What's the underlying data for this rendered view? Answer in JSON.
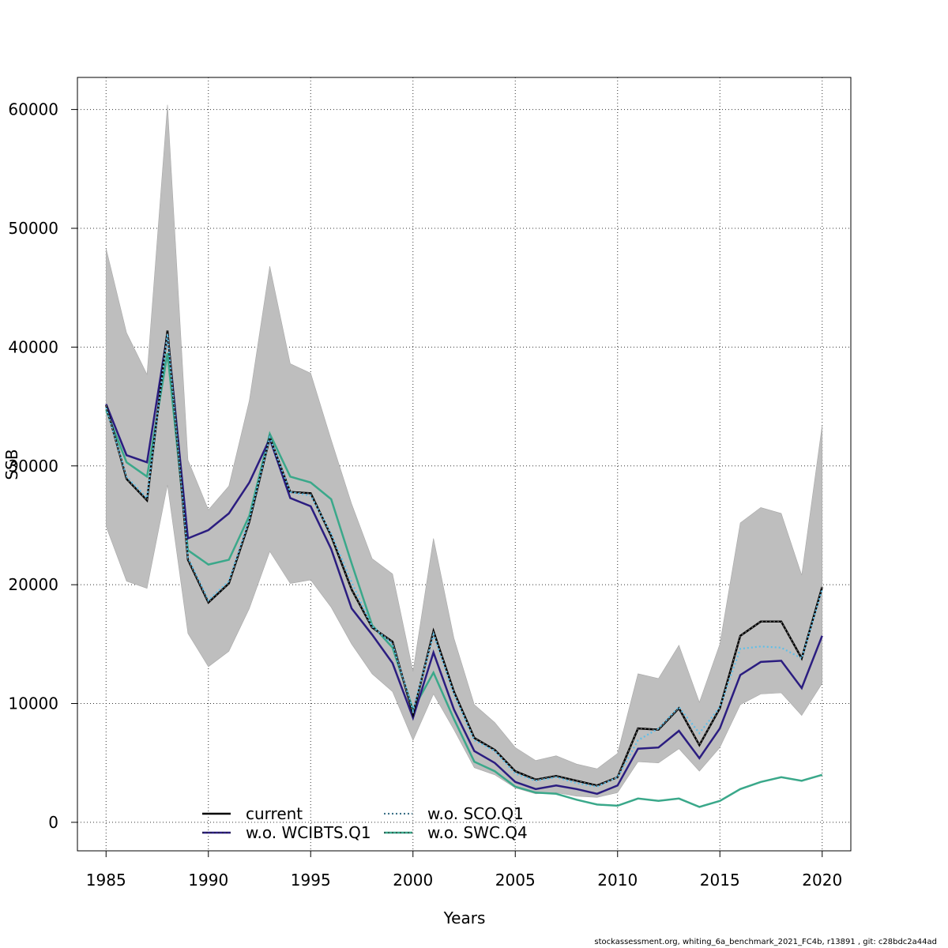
{
  "chart_data": {
    "type": "line",
    "title": "",
    "xlabel": "Years",
    "ylabel": "SSB",
    "xlim": [
      1983.6,
      2021.4
    ],
    "ylim": [
      -2400,
      62700
    ],
    "x_ticks": [
      1985,
      1990,
      1995,
      2000,
      2005,
      2010,
      2015,
      2020
    ],
    "y_ticks": [
      0,
      10000,
      20000,
      30000,
      40000,
      50000,
      60000
    ],
    "grid": true,
    "legend_position": "bottom-left",
    "x": [
      1985,
      1986,
      1987,
      1988,
      1989,
      1990,
      1991,
      1992,
      1993,
      1994,
      1995,
      1996,
      1997,
      1998,
      1999,
      2000,
      2001,
      2002,
      2003,
      2004,
      2005,
      2006,
      2007,
      2008,
      2009,
      2010,
      2011,
      2012,
      2013,
      2014,
      2015,
      2016,
      2017,
      2018,
      2019,
      2020
    ],
    "band": {
      "upper": [
        48300,
        41200,
        37700,
        60400,
        30500,
        26300,
        28300,
        35500,
        46800,
        38600,
        37800,
        32200,
        26800,
        22200,
        20900,
        12700,
        23900,
        15500,
        9900,
        8400,
        6300,
        5200,
        5600,
        4900,
        4500,
        5800,
        12500,
        12100,
        14900,
        10100,
        15000,
        25200,
        26500,
        26000,
        20800,
        33400
      ],
      "lower": [
        24900,
        20300,
        19700,
        28400,
        15900,
        13100,
        14400,
        18000,
        22800,
        20100,
        20400,
        18100,
        15000,
        12500,
        11000,
        6900,
        10800,
        7800,
        4600,
        4000,
        2900,
        2400,
        2500,
        2200,
        2100,
        2500,
        5100,
        5000,
        6200,
        4300,
        6300,
        9900,
        10800,
        10900,
        9000,
        11700
      ],
      "color": "#bebebe"
    },
    "series": [
      {
        "name": "current",
        "color": "#000000",
        "style": "solid",
        "values": [
          35100,
          28900,
          27100,
          41400,
          22100,
          18500,
          20100,
          25300,
          32400,
          27800,
          27700,
          24100,
          19600,
          16400,
          15200,
          9100,
          16100,
          11000,
          7100,
          6100,
          4300,
          3600,
          3900,
          3500,
          3100,
          3800,
          7900,
          7800,
          9600,
          6500,
          9600,
          15700,
          16900,
          16900,
          13800,
          19800
        ]
      },
      {
        "name": "w.o. WCIBTS.Q1",
        "color": "#2b1d80",
        "style": "solid",
        "values": [
          35200,
          30900,
          30300,
          41200,
          23900,
          24600,
          26000,
          28600,
          32300,
          27300,
          26600,
          23000,
          18000,
          15800,
          13400,
          8800,
          14300,
          9500,
          6000,
          5000,
          3400,
          2800,
          3100,
          2800,
          2400,
          3100,
          6200,
          6300,
          7700,
          5400,
          7900,
          12400,
          13500,
          13600,
          11300,
          15700
        ]
      },
      {
        "name": "w.o. SCO.Q1",
        "color": "#5fbfe8",
        "style": "dotted",
        "values": [
          34900,
          29100,
          27300,
          41100,
          22300,
          18700,
          20300,
          25500,
          32400,
          27800,
          27500,
          24300,
          20200,
          16500,
          15000,
          9400,
          15800,
          10800,
          6900,
          6000,
          4100,
          3500,
          3800,
          3300,
          3000,
          3800,
          6900,
          7900,
          9700,
          7500,
          9700,
          14600,
          14800,
          14700,
          13800,
          19600
        ]
      },
      {
        "name": "w.o. SWC.Q4",
        "color": "#3aa88a",
        "style": "solid",
        "values": [
          34700,
          30300,
          29100,
          39500,
          22900,
          21700,
          22100,
          25800,
          32700,
          29100,
          28600,
          27200,
          21800,
          16600,
          14700,
          9500,
          12600,
          8700,
          5100,
          4300,
          3000,
          2500,
          2400,
          1900,
          1500,
          1400,
          2000,
          1800,
          2000,
          1300,
          1800,
          2800,
          3400,
          3800,
          3500,
          4000
        ]
      }
    ]
  },
  "footer": "stockassessment.org, whiting_6a_benchmark_2021_FC4b, r13891 , git: c28bdc2a44ad"
}
